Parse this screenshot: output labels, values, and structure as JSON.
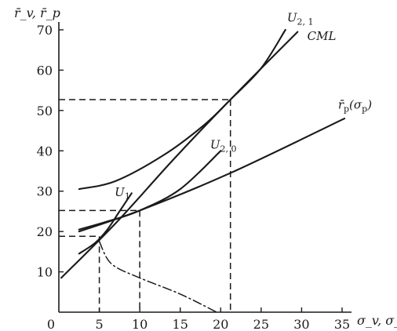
{
  "chart_data": {
    "type": "line",
    "title": "",
    "xlabel": "σ_v, σ_p",
    "ylabel": "r̄_v, r̄_p",
    "xlim": [
      0,
      35
    ],
    "ylim": [
      0,
      70
    ],
    "x_ticks": [
      0,
      5,
      10,
      15,
      20,
      25,
      30,
      35
    ],
    "y_ticks": [
      10,
      20,
      30,
      40,
      50,
      60,
      70
    ],
    "grid": false,
    "legend": "none",
    "series": [
      {
        "name": "CML",
        "style": "solid",
        "points": [
          [
            0.3,
            8.5
          ],
          [
            7,
            22
          ],
          [
            14,
            37.5
          ],
          [
            21.2,
            52.7
          ],
          [
            29.5,
            69.5
          ]
        ]
      },
      {
        "name": "r̄_p(σ_p)",
        "style": "solid",
        "points": [
          [
            2.5,
            20
          ],
          [
            10,
            25.2
          ],
          [
            21.2,
            34.5
          ],
          [
            35.3,
            48
          ]
        ]
      },
      {
        "name": "U_2, 1",
        "style": "solid",
        "points": [
          [
            2.5,
            30.5
          ],
          [
            7,
            32.5
          ],
          [
            13,
            39
          ],
          [
            18,
            46.5
          ],
          [
            21.2,
            52.7
          ],
          [
            25,
            60.5
          ],
          [
            28,
            70
          ]
        ]
      },
      {
        "name": "U_2, 0",
        "style": "solid",
        "points": [
          [
            2.5,
            20.5
          ],
          [
            6,
            22.5
          ],
          [
            10,
            25.2
          ],
          [
            15,
            30.5
          ],
          [
            20,
            40
          ]
        ]
      },
      {
        "name": "U_1",
        "style": "solid",
        "points": [
          [
            2.5,
            14.5
          ],
          [
            4.5,
            17.2
          ],
          [
            6,
            20.5
          ],
          [
            7.5,
            25
          ],
          [
            9,
            29.5
          ]
        ]
      },
      {
        "name": "",
        "style": "dashdot",
        "points": [
          [
            5,
            17.5
          ],
          [
            6.5,
            12
          ],
          [
            10,
            8.5
          ],
          [
            15,
            4.5
          ],
          [
            19.5,
            0
          ]
        ]
      }
    ],
    "reference_lines": [
      {
        "style": "dashed",
        "points": [
          [
            0,
            52.7
          ],
          [
            21.2,
            52.7
          ]
        ]
      },
      {
        "style": "dashed",
        "points": [
          [
            21.2,
            52.7
          ],
          [
            21.2,
            0
          ]
        ]
      },
      {
        "style": "dashed",
        "points": [
          [
            0,
            25.2
          ],
          [
            10,
            25.2
          ]
        ]
      },
      {
        "style": "dashed",
        "points": [
          [
            10,
            25.2
          ],
          [
            10,
            0
          ]
        ]
      },
      {
        "style": "dashed",
        "points": [
          [
            0,
            18.8
          ],
          [
            5,
            18.8
          ]
        ]
      },
      {
        "style": "dashed",
        "points": [
          [
            5,
            18.8
          ],
          [
            5,
            0
          ]
        ]
      }
    ],
    "labels": [
      {
        "text": "U",
        "sub": "2, 1",
        "anchor": [
          28.2,
          72
        ]
      },
      {
        "text": "CML",
        "sub": "",
        "anchor": [
          30.7,
          67.5
        ]
      },
      {
        "text": "r̄",
        "sub": "p",
        "suffix": "(σ",
        "sub2": "p",
        "suffix2": ")",
        "anchor": [
          34.5,
          50.5
        ]
      },
      {
        "text": "U",
        "sub": "2, 0",
        "anchor": [
          18.7,
          40.5
        ]
      },
      {
        "text": "U",
        "sub": "1",
        "anchor": [
          6.9,
          28.8
        ]
      }
    ]
  }
}
